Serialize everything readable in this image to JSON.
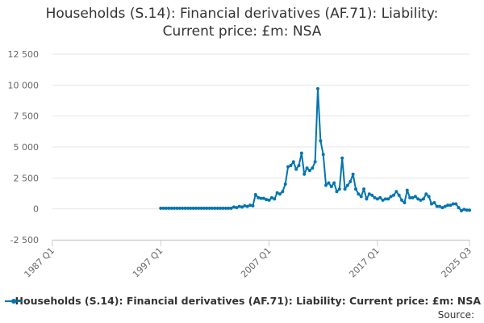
{
  "chart_data": {
    "type": "line",
    "title": "Households (S.14): Financial derivatives (AF.71): Liability: Current price: £m: NSA",
    "xlabel": "",
    "ylabel": "",
    "x_tick_labels": [
      "1987 Q1",
      "1997 Q1",
      "2007 Q1",
      "2017 Q1",
      "2025 Q3"
    ],
    "x_ticks": [
      1987.0,
      1997.0,
      2007.0,
      2017.0,
      2025.5
    ],
    "xlim": [
      1987.0,
      2025.5
    ],
    "ylim": [
      -2500,
      12500
    ],
    "y_ticks": [
      -2500,
      0,
      2500,
      5000,
      7500,
      10000,
      12500
    ],
    "y_tick_labels": [
      "-2 500",
      "0",
      "2 500",
      "5 000",
      "7 500",
      "10 000",
      "12 500"
    ],
    "grid": "horizontal",
    "legend_position": "bottom",
    "series": [
      {
        "name": "Households (S.14): Financial derivatives (AF.71): Liability: Current price: £m: NSA",
        "color": "#0075b0",
        "points": [
          [
            1997.0,
            50
          ],
          [
            1997.25,
            50
          ],
          [
            1997.5,
            50
          ],
          [
            1997.75,
            50
          ],
          [
            1998.0,
            50
          ],
          [
            1998.25,
            50
          ],
          [
            1998.5,
            50
          ],
          [
            1998.75,
            50
          ],
          [
            1999.0,
            50
          ],
          [
            1999.25,
            50
          ],
          [
            1999.5,
            50
          ],
          [
            1999.75,
            50
          ],
          [
            2000.0,
            50
          ],
          [
            2000.25,
            50
          ],
          [
            2000.5,
            50
          ],
          [
            2000.75,
            50
          ],
          [
            2001.0,
            50
          ],
          [
            2001.25,
            50
          ],
          [
            2001.5,
            50
          ],
          [
            2001.75,
            50
          ],
          [
            2002.0,
            50
          ],
          [
            2002.25,
            50
          ],
          [
            2002.5,
            50
          ],
          [
            2002.75,
            50
          ],
          [
            2003.0,
            50
          ],
          [
            2003.25,
            50
          ],
          [
            2003.5,
            50
          ],
          [
            2003.75,
            150
          ],
          [
            2004.0,
            100
          ],
          [
            2004.25,
            200
          ],
          [
            2004.5,
            150
          ],
          [
            2004.75,
            250
          ],
          [
            2005.0,
            200
          ],
          [
            2005.25,
            300
          ],
          [
            2005.5,
            250
          ],
          [
            2005.75,
            1150
          ],
          [
            2006.0,
            900
          ],
          [
            2006.25,
            850
          ],
          [
            2006.5,
            850
          ],
          [
            2006.75,
            750
          ],
          [
            2007.0,
            700
          ],
          [
            2007.25,
            900
          ],
          [
            2007.5,
            800
          ],
          [
            2007.75,
            1300
          ],
          [
            2008.0,
            1200
          ],
          [
            2008.25,
            1400
          ],
          [
            2008.5,
            2000
          ],
          [
            2008.75,
            3400
          ],
          [
            2009.0,
            3500
          ],
          [
            2009.25,
            3800
          ],
          [
            2009.5,
            3200
          ],
          [
            2009.75,
            3500
          ],
          [
            2010.0,
            4500
          ],
          [
            2010.25,
            2800
          ],
          [
            2010.5,
            3300
          ],
          [
            2010.75,
            3100
          ],
          [
            2011.0,
            3300
          ],
          [
            2011.25,
            3800
          ],
          [
            2011.5,
            9700
          ],
          [
            2011.75,
            5500
          ],
          [
            2012.0,
            4400
          ],
          [
            2012.25,
            1900
          ],
          [
            2012.5,
            2100
          ],
          [
            2012.75,
            1800
          ],
          [
            2013.0,
            2100
          ],
          [
            2013.25,
            1400
          ],
          [
            2013.5,
            1600
          ],
          [
            2013.75,
            4100
          ],
          [
            2014.0,
            1600
          ],
          [
            2014.25,
            1900
          ],
          [
            2014.5,
            2200
          ],
          [
            2014.75,
            2800
          ],
          [
            2015.0,
            1600
          ],
          [
            2015.25,
            1200
          ],
          [
            2015.5,
            1000
          ],
          [
            2015.75,
            1600
          ],
          [
            2016.0,
            800
          ],
          [
            2016.25,
            1200
          ],
          [
            2016.5,
            1100
          ],
          [
            2016.75,
            900
          ],
          [
            2017.0,
            800
          ],
          [
            2017.25,
            900
          ],
          [
            2017.5,
            700
          ],
          [
            2017.75,
            800
          ],
          [
            2018.0,
            800
          ],
          [
            2018.25,
            1000
          ],
          [
            2018.5,
            1100
          ],
          [
            2018.75,
            1400
          ],
          [
            2019.0,
            1100
          ],
          [
            2019.25,
            700
          ],
          [
            2019.5,
            500
          ],
          [
            2019.75,
            1500
          ],
          [
            2020.0,
            900
          ],
          [
            2020.25,
            900
          ],
          [
            2020.5,
            1000
          ],
          [
            2020.75,
            800
          ],
          [
            2021.0,
            700
          ],
          [
            2021.25,
            800
          ],
          [
            2021.5,
            1200
          ],
          [
            2021.75,
            1000
          ],
          [
            2022.0,
            400
          ],
          [
            2022.25,
            500
          ],
          [
            2022.5,
            200
          ],
          [
            2022.75,
            200
          ],
          [
            2023.0,
            100
          ],
          [
            2023.25,
            200
          ],
          [
            2023.5,
            300
          ],
          [
            2023.75,
            300
          ],
          [
            2024.0,
            400
          ],
          [
            2024.25,
            400
          ],
          [
            2024.5,
            100
          ],
          [
            2024.75,
            -150
          ],
          [
            2025.0,
            -50
          ],
          [
            2025.25,
            -100
          ],
          [
            2025.5,
            -100
          ]
        ]
      }
    ]
  },
  "legend": {
    "label": "Households (S.14): Financial derivatives (AF.71): Liability: Current price: £m: NSA"
  },
  "source_label": "Source:"
}
